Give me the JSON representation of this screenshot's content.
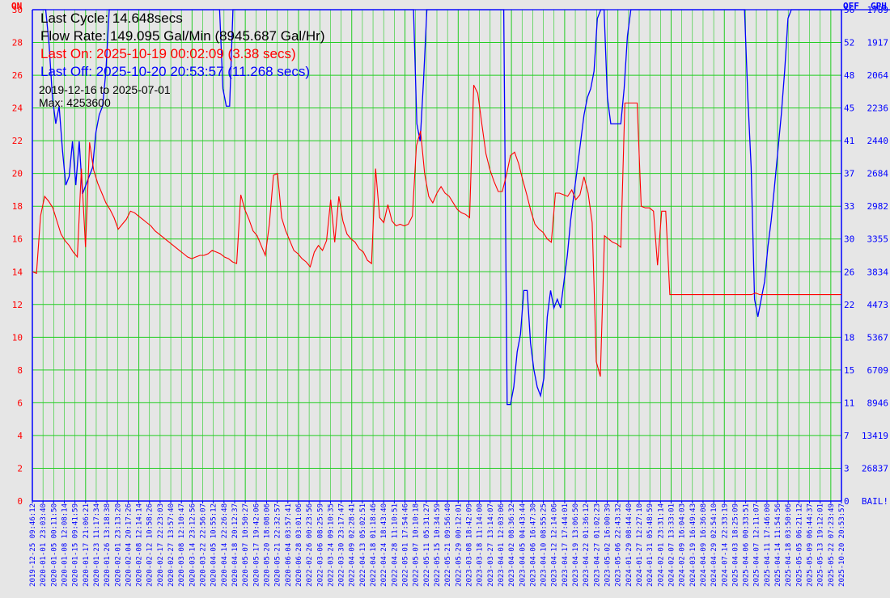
{
  "info": {
    "last_cycle": "Last Cycle: 14.648secs",
    "flow_rate": "Flow Rate: 149.095 Gal/Min (8945.687 Gal/Hr)",
    "last_on": "Last On: 2025-10-19 00:02:09 (3.38 secs)",
    "last_off": "Last Off: 2025-10-20 20:53:57 (11.268 secs)",
    "date_range": "2019-12-16 to 2025-07-01",
    "max": "Max: 4253600"
  },
  "colors": {
    "on": "#ff0000",
    "off": "#0000ff",
    "grid": "#22cc22",
    "background": "#e6e6e6",
    "text": "#000000"
  },
  "chart_data": {
    "type": "line",
    "grid": true,
    "left_axis": {
      "title": "ON",
      "ticks": [
        "0",
        "2",
        "4",
        "6",
        "8",
        "10",
        "12",
        "14",
        "16",
        "18",
        "20",
        "22",
        "24",
        "26",
        "28",
        "30"
      ],
      "ylim": [
        0,
        30
      ]
    },
    "right_axis_off": {
      "title": "OFF",
      "ticks": [
        "0",
        "3",
        "7",
        "11",
        "15",
        "18",
        "22",
        "26",
        "30",
        "33",
        "37",
        "41",
        "45",
        "48",
        "52",
        "56"
      ]
    },
    "right_axis_gph": {
      "title": "GPH",
      "ticks": [
        "BAIL!",
        "26837",
        "13419",
        "8946",
        "6709",
        "5367",
        "4473",
        "3834",
        "3355",
        "2982",
        "2684",
        "2440",
        "2236",
        "2064",
        "1917",
        "1789"
      ]
    },
    "x_ticks": [
      "2019-12-25 09:46:12",
      "2020-01-01 23:03:40",
      "2020-01-05 00:11:50",
      "2020-01-08 12:08:14",
      "2020-01-15 09:41:59",
      "2020-01-17 21:06:21",
      "2020-01-23 11:17:34",
      "2020-01-26 13:18:38",
      "2020-02-01 23:13:20",
      "2020-02-04 20:17:26",
      "2020-02-08 12:14:14",
      "2020-02-12 10:58:26",
      "2020-02-17 22:23:03",
      "2020-02-27 13:57:40",
      "2020-03-08 12:10:47",
      "2020-03-14 23:12:56",
      "2020-03-22 22:56:07",
      "2020-04-05 10:55:12",
      "2020-04-14 22:26:48",
      "2020-04-18 20:12:37",
      "2020-05-07 10:50:27",
      "2020-05-17 19:42:06",
      "2020-05-20 18:08:06",
      "2020-05-21 22:32:57",
      "2020-06-04 03:57:41",
      "2020-06-28 03:01:06",
      "2022-02-26 00:23:56",
      "2022-03-06 08:25:59",
      "2022-03-24 09:10:35",
      "2022-03-30 23:17:47",
      "2022-04-09 02:28:41",
      "2022-04-13 05:02:51",
      "2022-04-18 01:18:46",
      "2022-04-24 18:43:40",
      "2022-04-28 11:10:51",
      "2022-05-01 17:54:46",
      "2022-05-07 10:10:18",
      "2022-05-11 05:31:27",
      "2022-05-15 10:34:59",
      "2022-05-21 09:56:40",
      "2022-05-29 00:12:01",
      "2023-03-08 18:42:09",
      "2023-03-18 11:14:00",
      "2023-03-27 13:14:07",
      "2023-04-01 12:03:06",
      "2023-04-02 08:36:32",
      "2023-04-05 04:43:44",
      "2023-04-06 16:47:30",
      "2023-04-10 08:55:25",
      "2023-04-12 12:14:06",
      "2023-04-17 17:44:01",
      "2023-04-19 13:06:50",
      "2023-04-22 01:36:12",
      "2023-04-27 01:02:23",
      "2023-05-02 16:00:39",
      "2023-05-06 22:43:32",
      "2024-01-29 08:44:40",
      "2024-01-27 12:27:10",
      "2024-01-31 05:48:59",
      "2024-02-01 23:31:14",
      "2024-02-07 13:33:01",
      "2024-02-09 16:04:03",
      "2024-03-19 16:49:43",
      "2024-04-09 16:36:08",
      "2024-04-29 02:54:10",
      "2024-07-14 22:33:19",
      "2025-04-03 18:25:09",
      "2025-04-06 00:33:51",
      "2025-04-07 12:11:07",
      "2025-04-11 17:46:00",
      "2025-04-14 11:54:56",
      "2025-04-18 03:50:06",
      "2025-05-05 06:21:12",
      "2025-05-09 06:44:37",
      "2025-05-13 19:12:01",
      "2025-05-22 07:23:49",
      "2025-10-20 20:53:57"
    ],
    "series": [
      {
        "name": "ON",
        "unit_axis": "left",
        "values": [
          14.0,
          13.9,
          17.4,
          18.6,
          18.3,
          17.9,
          17.1,
          16.3,
          15.9,
          15.6,
          15.2,
          14.9,
          20.3,
          15.5,
          21.9,
          20.2,
          19.4,
          18.8,
          18.2,
          17.8,
          17.3,
          16.6,
          16.9,
          17.2,
          17.7,
          17.6,
          17.4,
          17.2,
          17.0,
          16.8,
          16.5,
          16.3,
          16.1,
          15.9,
          15.7,
          15.5,
          15.3,
          15.1,
          14.9,
          14.8,
          14.9,
          15.0,
          15.0,
          15.1,
          15.3,
          15.2,
          15.1,
          14.9,
          14.8,
          14.6,
          14.5,
          18.7,
          17.8,
          17.2,
          16.5,
          16.2,
          15.6,
          15.0,
          16.9,
          19.9,
          20.0,
          17.3,
          16.5,
          15.9,
          15.3,
          15.1,
          14.8,
          14.6,
          14.3,
          15.2,
          15.6,
          15.3,
          15.9,
          18.4,
          15.8,
          18.6,
          17.1,
          16.3,
          16.0,
          15.8,
          15.4,
          15.2,
          14.7,
          14.5,
          20.3,
          17.3,
          17.0,
          18.1,
          17.1,
          16.8,
          16.9,
          16.8,
          16.9,
          17.4,
          21.7,
          22.6,
          20.0,
          18.6,
          18.2,
          18.8,
          19.2,
          18.8,
          18.6,
          18.2,
          17.8,
          17.6,
          17.5,
          17.3,
          25.4,
          24.9,
          23.0,
          21.2,
          20.2,
          19.5,
          18.9,
          18.9,
          19.9,
          21.1,
          21.3,
          20.6,
          19.6,
          18.7,
          17.7,
          16.9,
          16.6,
          16.4,
          16.0,
          15.8,
          18.8,
          18.8,
          18.7,
          18.6,
          19.0,
          18.4,
          18.7,
          19.8,
          18.8,
          17.0,
          8.5,
          7.6,
          16.2,
          16.0,
          15.8,
          15.7,
          15.5,
          24.3,
          24.3,
          24.3,
          24.3,
          18.0,
          17.9,
          17.9,
          17.7,
          14.4,
          17.7,
          17.7,
          12.6,
          12.6,
          12.6,
          12.6,
          12.6,
          12.6,
          12.6,
          12.6,
          12.6,
          12.6,
          12.6,
          12.6,
          12.6,
          12.6,
          12.6,
          12.6,
          12.6,
          12.6,
          12.6,
          12.6,
          12.6,
          12.7,
          12.6,
          12.6,
          12.6,
          12.6,
          12.6,
          12.6,
          12.6,
          12.6,
          12.6,
          12.6,
          12.6,
          12.6,
          12.6,
          12.6,
          12.6,
          12.6,
          12.6,
          12.6,
          12.6,
          12.6,
          12.6
        ]
      },
      {
        "name": "OFF",
        "unit_axis": "off",
        "values": [
          56,
          56,
          56,
          56,
          56,
          52,
          46,
          43,
          45,
          40,
          36,
          37,
          41,
          36,
          41,
          35,
          36,
          37,
          38,
          42,
          44,
          45,
          49,
          56,
          56,
          56,
          56,
          56,
          56,
          56,
          56,
          56,
          56,
          56,
          56,
          56,
          56,
          56,
          56,
          56,
          56,
          56,
          56,
          56,
          56,
          56,
          56,
          56,
          56,
          56,
          56,
          56,
          56,
          56,
          56,
          56,
          56,
          47,
          45,
          45,
          56,
          56,
          56,
          56,
          56,
          56,
          56,
          56,
          56,
          56,
          56,
          56,
          56,
          56,
          56,
          56,
          56,
          56,
          56,
          56,
          56,
          56,
          56,
          56,
          56,
          56,
          56,
          56,
          56,
          56,
          56,
          56,
          56,
          56,
          56,
          56,
          56,
          56,
          56,
          56,
          56,
          56,
          56,
          56,
          56,
          56,
          56,
          56,
          56,
          56,
          56,
          56,
          56,
          56,
          56,
          43,
          41,
          48,
          56,
          56,
          56,
          56,
          56,
          56,
          56,
          56,
          56,
          56,
          56,
          56,
          56,
          56,
          56,
          56,
          56,
          56,
          56,
          56,
          56,
          56,
          56,
          56,
          11,
          11,
          13,
          17,
          19,
          24,
          24,
          18,
          15,
          13,
          12,
          14,
          21,
          24,
          22,
          23,
          22,
          25,
          28,
          32,
          35,
          38,
          41,
          44,
          46,
          47,
          49,
          55,
          56,
          56,
          46,
          43,
          43,
          43,
          43,
          47,
          53,
          56,
          56,
          56,
          56,
          56,
          56,
          56,
          56,
          56,
          56,
          56,
          56,
          56,
          56,
          56,
          56,
          56,
          56,
          56,
          56,
          56,
          56,
          56,
          56,
          56,
          56,
          56,
          56,
          56,
          56,
          56,
          56,
          56,
          56,
          56,
          46,
          38,
          23,
          21,
          23,
          25,
          29,
          32,
          36,
          40,
          44,
          49,
          55,
          56,
          56,
          56,
          56,
          56,
          56,
          56,
          56,
          56,
          56,
          56,
          56,
          56,
          56,
          56,
          56
        ]
      }
    ]
  }
}
